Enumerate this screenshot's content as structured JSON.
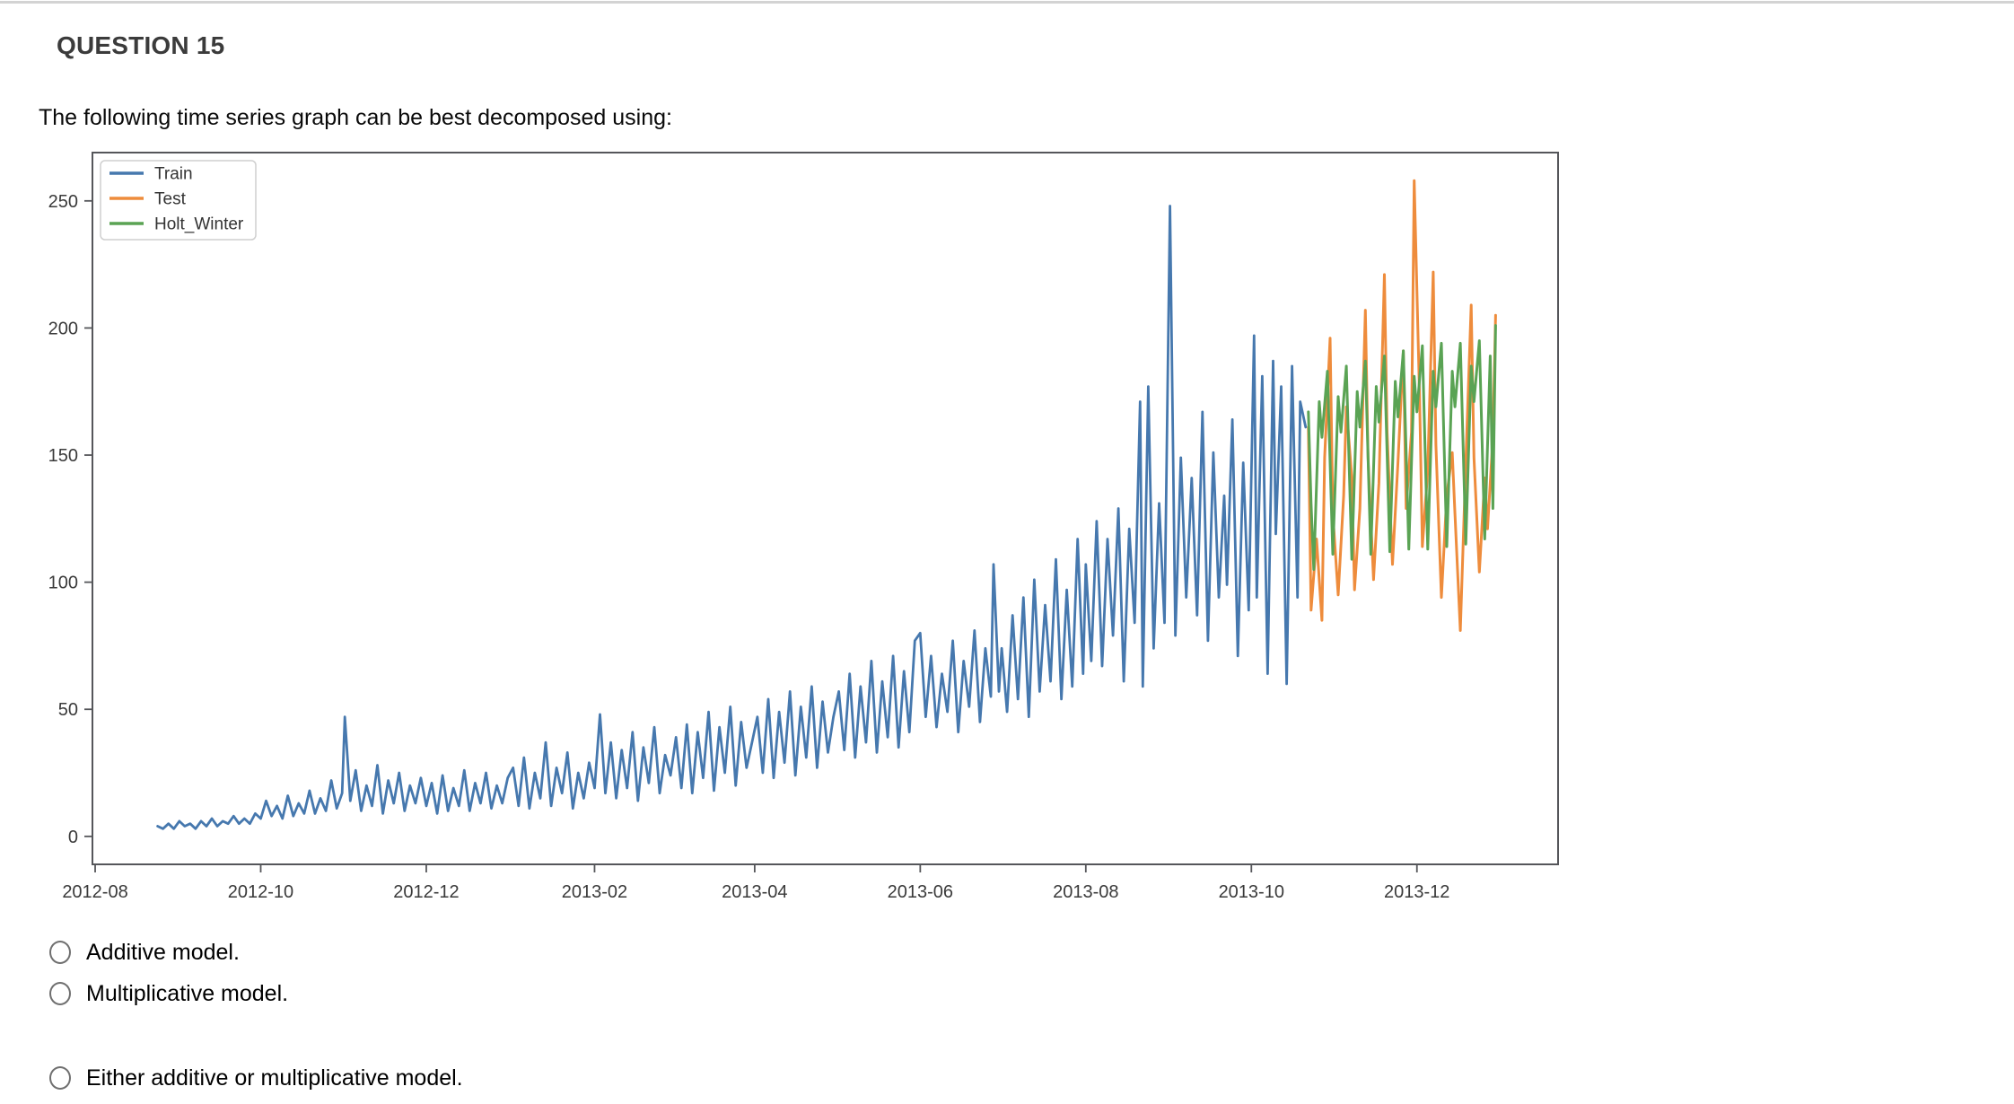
{
  "question": {
    "title": "QUESTION 15",
    "prompt": "The following time series graph can be best decomposed using:"
  },
  "options": [
    {
      "label": "Additive model."
    },
    {
      "label": "Multiplicative model."
    },
    {
      "label": "Either additive or multiplicative model."
    }
  ],
  "chart_data": {
    "type": "line",
    "title": "",
    "xlabel": "",
    "ylabel": "",
    "grid": false,
    "legend_position": "upper-left",
    "axis_color": "#55565a",
    "tick_color": "#3a3a3a",
    "legend_border_color": "#cfcfcf",
    "xlim_days": [
      -1,
      539
    ],
    "ylim": [
      -11,
      269
    ],
    "y_ticks": [
      0,
      50,
      100,
      150,
      200,
      250
    ],
    "x_ticks": [
      {
        "day": 0,
        "label": "2012-08"
      },
      {
        "day": 61,
        "label": "2012-10"
      },
      {
        "day": 122,
        "label": "2012-12"
      },
      {
        "day": 184,
        "label": "2013-02"
      },
      {
        "day": 243,
        "label": "2013-04"
      },
      {
        "day": 304,
        "label": "2013-06"
      },
      {
        "day": 365,
        "label": "2013-08"
      },
      {
        "day": 426,
        "label": "2013-10"
      },
      {
        "day": 487,
        "label": "2013-12"
      }
    ],
    "x_axis_note": "day 0 = 2012-08-01, daily data",
    "series": [
      {
        "name": "Train",
        "color": "#4678ae",
        "width": 2.8,
        "points": [
          [
            23,
            4
          ],
          [
            25,
            3
          ],
          [
            27,
            5
          ],
          [
            29,
            3
          ],
          [
            31,
            6
          ],
          [
            33,
            4
          ],
          [
            35,
            5
          ],
          [
            37,
            3
          ],
          [
            39,
            6
          ],
          [
            41,
            4
          ],
          [
            43,
            7
          ],
          [
            45,
            4
          ],
          [
            47,
            6
          ],
          [
            49,
            5
          ],
          [
            51,
            8
          ],
          [
            53,
            5
          ],
          [
            55,
            7
          ],
          [
            57,
            5
          ],
          [
            59,
            9
          ],
          [
            61,
            7
          ],
          [
            63,
            14
          ],
          [
            65,
            8
          ],
          [
            67,
            12
          ],
          [
            69,
            7
          ],
          [
            71,
            16
          ],
          [
            73,
            8
          ],
          [
            75,
            13
          ],
          [
            77,
            9
          ],
          [
            79,
            18
          ],
          [
            81,
            9
          ],
          [
            83,
            15
          ],
          [
            85,
            10
          ],
          [
            87,
            22
          ],
          [
            89,
            11
          ],
          [
            91,
            17
          ],
          [
            92,
            47
          ],
          [
            94,
            14
          ],
          [
            96,
            26
          ],
          [
            98,
            10
          ],
          [
            100,
            20
          ],
          [
            102,
            12
          ],
          [
            104,
            28
          ],
          [
            106,
            9
          ],
          [
            108,
            22
          ],
          [
            110,
            13
          ],
          [
            112,
            25
          ],
          [
            114,
            10
          ],
          [
            116,
            20
          ],
          [
            118,
            13
          ],
          [
            120,
            23
          ],
          [
            122,
            12
          ],
          [
            124,
            21
          ],
          [
            126,
            9
          ],
          [
            128,
            24
          ],
          [
            130,
            10
          ],
          [
            132,
            19
          ],
          [
            134,
            12
          ],
          [
            136,
            26
          ],
          [
            138,
            10
          ],
          [
            140,
            21
          ],
          [
            142,
            13
          ],
          [
            144,
            25
          ],
          [
            146,
            11
          ],
          [
            148,
            20
          ],
          [
            150,
            13
          ],
          [
            152,
            23
          ],
          [
            154,
            27
          ],
          [
            156,
            12
          ],
          [
            158,
            31
          ],
          [
            160,
            11
          ],
          [
            162,
            25
          ],
          [
            164,
            15
          ],
          [
            166,
            37
          ],
          [
            168,
            12
          ],
          [
            170,
            27
          ],
          [
            172,
            17
          ],
          [
            174,
            33
          ],
          [
            176,
            11
          ],
          [
            178,
            25
          ],
          [
            180,
            15
          ],
          [
            182,
            29
          ],
          [
            184,
            19
          ],
          [
            186,
            48
          ],
          [
            188,
            17
          ],
          [
            190,
            37
          ],
          [
            192,
            15
          ],
          [
            194,
            34
          ],
          [
            196,
            19
          ],
          [
            198,
            41
          ],
          [
            200,
            14
          ],
          [
            202,
            35
          ],
          [
            204,
            21
          ],
          [
            206,
            43
          ],
          [
            208,
            17
          ],
          [
            210,
            32
          ],
          [
            212,
            24
          ],
          [
            214,
            39
          ],
          [
            216,
            19
          ],
          [
            218,
            44
          ],
          [
            220,
            17
          ],
          [
            222,
            41
          ],
          [
            224,
            23
          ],
          [
            226,
            49
          ],
          [
            228,
            18
          ],
          [
            230,
            43
          ],
          [
            232,
            25
          ],
          [
            234,
            51
          ],
          [
            236,
            20
          ],
          [
            238,
            45
          ],
          [
            240,
            27
          ],
          [
            242,
            37
          ],
          [
            244,
            47
          ],
          [
            246,
            25
          ],
          [
            248,
            54
          ],
          [
            250,
            23
          ],
          [
            252,
            49
          ],
          [
            254,
            29
          ],
          [
            256,
            57
          ],
          [
            258,
            24
          ],
          [
            260,
            51
          ],
          [
            262,
            31
          ],
          [
            264,
            59
          ],
          [
            266,
            27
          ],
          [
            268,
            53
          ],
          [
            270,
            33
          ],
          [
            272,
            47
          ],
          [
            274,
            57
          ],
          [
            276,
            34
          ],
          [
            278,
            64
          ],
          [
            280,
            31
          ],
          [
            282,
            59
          ],
          [
            284,
            37
          ],
          [
            286,
            69
          ],
          [
            288,
            33
          ],
          [
            290,
            61
          ],
          [
            292,
            39
          ],
          [
            294,
            71
          ],
          [
            296,
            35
          ],
          [
            298,
            65
          ],
          [
            300,
            41
          ],
          [
            302,
            77
          ],
          [
            304,
            80
          ],
          [
            306,
            47
          ],
          [
            308,
            71
          ],
          [
            310,
            43
          ],
          [
            312,
            64
          ],
          [
            314,
            49
          ],
          [
            316,
            77
          ],
          [
            318,
            41
          ],
          [
            320,
            69
          ],
          [
            322,
            51
          ],
          [
            324,
            81
          ],
          [
            326,
            45
          ],
          [
            328,
            74
          ],
          [
            330,
            55
          ],
          [
            331,
            107
          ],
          [
            333,
            57
          ],
          [
            334,
            74
          ],
          [
            336,
            49
          ],
          [
            338,
            87
          ],
          [
            340,
            54
          ],
          [
            342,
            94
          ],
          [
            344,
            47
          ],
          [
            346,
            101
          ],
          [
            348,
            57
          ],
          [
            350,
            91
          ],
          [
            352,
            61
          ],
          [
            354,
            109
          ],
          [
            356,
            54
          ],
          [
            358,
            97
          ],
          [
            360,
            59
          ],
          [
            362,
            117
          ],
          [
            364,
            64
          ],
          [
            365,
            107
          ],
          [
            367,
            69
          ],
          [
            369,
            124
          ],
          [
            371,
            67
          ],
          [
            373,
            117
          ],
          [
            375,
            79
          ],
          [
            377,
            129
          ],
          [
            379,
            61
          ],
          [
            381,
            121
          ],
          [
            383,
            84
          ],
          [
            385,
            171
          ],
          [
            386,
            59
          ],
          [
            388,
            177
          ],
          [
            390,
            74
          ],
          [
            392,
            131
          ],
          [
            394,
            84
          ],
          [
            396,
            248
          ],
          [
            398,
            79
          ],
          [
            400,
            149
          ],
          [
            402,
            94
          ],
          [
            404,
            141
          ],
          [
            406,
            87
          ],
          [
            408,
            167
          ],
          [
            410,
            77
          ],
          [
            412,
            151
          ],
          [
            414,
            94
          ],
          [
            416,
            134
          ],
          [
            417,
            99
          ],
          [
            419,
            164
          ],
          [
            421,
            71
          ],
          [
            423,
            147
          ],
          [
            425,
            89
          ],
          [
            427,
            197
          ],
          [
            428,
            94
          ],
          [
            430,
            181
          ],
          [
            432,
            64
          ],
          [
            434,
            187
          ],
          [
            435,
            119
          ],
          [
            437,
            177
          ],
          [
            439,
            60
          ],
          [
            441,
            185
          ],
          [
            443,
            94
          ],
          [
            444,
            171
          ],
          [
            446,
            161
          ]
        ]
      },
      {
        "name": "Test",
        "color": "#ee8c3c",
        "width": 3,
        "points": [
          [
            447,
            161
          ],
          [
            448,
            89
          ],
          [
            450,
            117
          ],
          [
            452,
            85
          ],
          [
            453,
            149
          ],
          [
            455,
            196
          ],
          [
            456,
            127
          ],
          [
            458,
            95
          ],
          [
            460,
            134
          ],
          [
            461,
            169
          ],
          [
            463,
            141
          ],
          [
            464,
            97
          ],
          [
            466,
            129
          ],
          [
            468,
            207
          ],
          [
            469,
            149
          ],
          [
            471,
            101
          ],
          [
            473,
            139
          ],
          [
            475,
            221
          ],
          [
            476,
            159
          ],
          [
            478,
            107
          ],
          [
            480,
            147
          ],
          [
            482,
            191
          ],
          [
            483,
            129
          ],
          [
            485,
            159
          ],
          [
            486,
            258
          ],
          [
            488,
            171
          ],
          [
            489,
            114
          ],
          [
            491,
            144
          ],
          [
            493,
            222
          ],
          [
            494,
            154
          ],
          [
            496,
            94
          ],
          [
            498,
            134
          ],
          [
            500,
            151
          ],
          [
            501,
            127
          ],
          [
            503,
            81
          ],
          [
            505,
            147
          ],
          [
            507,
            209
          ],
          [
            508,
            149
          ],
          [
            510,
            104
          ],
          [
            512,
            141
          ],
          [
            513,
            121
          ],
          [
            515,
            157
          ],
          [
            516,
            205
          ]
        ]
      },
      {
        "name": "Holt_Winter",
        "color": "#5aa354",
        "width": 3,
        "points": [
          [
            447,
            167
          ],
          [
            448,
            131
          ],
          [
            449,
            105
          ],
          [
            451,
            171
          ],
          [
            452,
            157
          ],
          [
            454,
            183
          ],
          [
            456,
            111
          ],
          [
            458,
            173
          ],
          [
            459,
            159
          ],
          [
            461,
            185
          ],
          [
            463,
            109
          ],
          [
            465,
            175
          ],
          [
            466,
            161
          ],
          [
            468,
            187
          ],
          [
            470,
            111
          ],
          [
            472,
            177
          ],
          [
            473,
            163
          ],
          [
            475,
            189
          ],
          [
            477,
            112
          ],
          [
            479,
            179
          ],
          [
            480,
            165
          ],
          [
            482,
            191
          ],
          [
            484,
            113
          ],
          [
            486,
            181
          ],
          [
            487,
            167
          ],
          [
            489,
            193
          ],
          [
            491,
            113
          ],
          [
            493,
            183
          ],
          [
            494,
            169
          ],
          [
            496,
            194
          ],
          [
            498,
            114
          ],
          [
            500,
            183
          ],
          [
            501,
            169
          ],
          [
            503,
            194
          ],
          [
            505,
            115
          ],
          [
            507,
            185
          ],
          [
            508,
            171
          ],
          [
            510,
            195
          ],
          [
            512,
            117
          ],
          [
            514,
            189
          ],
          [
            515,
            129
          ],
          [
            516,
            201
          ]
        ]
      }
    ]
  }
}
